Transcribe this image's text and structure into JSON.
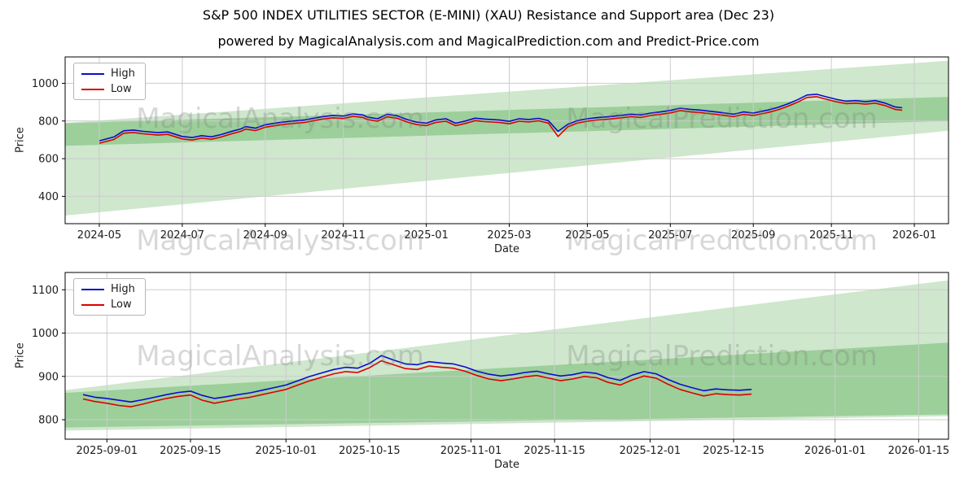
{
  "title": "S&P 500 INDEX UTILITIES SECTOR (E-MINI) (XAU) Resistance and Support area (Dec 23)",
  "subtitle": "powered by MagicalAnalysis.com and MagicalPrediction.com and Predict-Price.com",
  "watermark": {
    "analysis": "MagicalAnalysis.com",
    "prediction": "MagicalPrediction.com"
  },
  "colors": {
    "high_line": "#0b0bd0",
    "low_line": "#dd0000",
    "band_outer": "#cfe7cd",
    "band_inner": "#9ccf9a",
    "grid": "#cccccc",
    "spine": "#000000"
  },
  "chart_data": [
    {
      "type": "line",
      "xlabel": "Date",
      "ylabel": "Price",
      "xlim": [
        2024.26,
        2026.07
      ],
      "ylim": [
        255,
        1140
      ],
      "yticks": [
        400,
        600,
        800,
        1000
      ],
      "xticks": [
        {
          "pos": 2024.33,
          "label": "2024-05"
        },
        {
          "pos": 2024.5,
          "label": "2024-07"
        },
        {
          "pos": 2024.67,
          "label": "2024-09"
        },
        {
          "pos": 2024.83,
          "label": "2024-11"
        },
        {
          "pos": 2025.0,
          "label": "2025-01"
        },
        {
          "pos": 2025.17,
          "label": "2025-03"
        },
        {
          "pos": 2025.33,
          "label": "2025-05"
        },
        {
          "pos": 2025.5,
          "label": "2025-07"
        },
        {
          "pos": 2025.67,
          "label": "2025-09"
        },
        {
          "pos": 2025.83,
          "label": "2025-11"
        },
        {
          "pos": 2026.0,
          "label": "2026-01"
        }
      ],
      "x": [
        2024.33,
        2024.36,
        2024.38,
        2024.4,
        2024.42,
        2024.45,
        2024.47,
        2024.5,
        2024.52,
        2024.54,
        2024.56,
        2024.58,
        2024.6,
        2024.62,
        2024.63,
        2024.65,
        2024.67,
        2024.7,
        2024.72,
        2024.75,
        2024.77,
        2024.79,
        2024.81,
        2024.83,
        2024.85,
        2024.87,
        2024.88,
        2024.9,
        2024.92,
        2024.94,
        2024.96,
        2024.98,
        2025.0,
        2025.02,
        2025.04,
        2025.06,
        2025.08,
        2025.1,
        2025.12,
        2025.15,
        2025.17,
        2025.19,
        2025.21,
        2025.23,
        2025.25,
        2025.27,
        2025.29,
        2025.31,
        2025.33,
        2025.35,
        2025.37,
        2025.4,
        2025.42,
        2025.44,
        2025.46,
        2025.48,
        2025.5,
        2025.52,
        2025.54,
        2025.56,
        2025.58,
        2025.6,
        2025.63,
        2025.65,
        2025.67,
        2025.7,
        2025.72,
        2025.74,
        2025.76,
        2025.78,
        2025.8,
        2025.82,
        2025.84,
        2025.86,
        2025.88,
        2025.9,
        2025.92,
        2025.94,
        2025.96,
        2025.975
      ],
      "series": [
        {
          "name": "High",
          "color": "#0b0bd0",
          "values": [
            695,
            715,
            748,
            752,
            745,
            738,
            742,
            718,
            712,
            722,
            716,
            728,
            744,
            758,
            770,
            762,
            780,
            792,
            798,
            805,
            815,
            824,
            830,
            826,
            838,
            832,
            820,
            812,
            835,
            828,
            808,
            794,
            788,
            806,
            812,
            788,
            800,
            815,
            810,
            805,
            798,
            812,
            808,
            814,
            802,
            745,
            782,
            802,
            812,
            818,
            822,
            830,
            836,
            832,
            842,
            848,
            856,
            868,
            862,
            858,
            852,
            846,
            836,
            848,
            842,
            858,
            872,
            890,
            912,
            938,
            942,
            928,
            915,
            905,
            908,
            902,
            908,
            895,
            875,
            870
          ]
        },
        {
          "name": "Low",
          "color": "#dd0000",
          "values": [
            682,
            702,
            735,
            739,
            732,
            725,
            729,
            705,
            699,
            709,
            703,
            715,
            731,
            745,
            757,
            749,
            767,
            779,
            785,
            792,
            802,
            811,
            817,
            813,
            825,
            819,
            807,
            799,
            822,
            815,
            795,
            781,
            775,
            793,
            799,
            775,
            787,
            802,
            797,
            792,
            785,
            799,
            795,
            801,
            789,
            718,
            769,
            789,
            799,
            805,
            809,
            817,
            823,
            819,
            829,
            835,
            843,
            855,
            849,
            845,
            839,
            833,
            823,
            835,
            829,
            845,
            859,
            877,
            899,
            925,
            929,
            915,
            902,
            892,
            895,
            889,
            895,
            882,
            862,
            857
          ]
        }
      ],
      "bands": [
        {
          "name": "support-resistance-outer",
          "color": "#cfe7cd",
          "points": [
            [
              2024.26,
              790
            ],
            [
              2026.07,
              1120
            ],
            [
              2026.07,
              748
            ],
            [
              2024.26,
              298
            ]
          ]
        },
        {
          "name": "support-resistance-inner",
          "color": "#9ccf9a",
          "points": [
            [
              2024.26,
              788
            ],
            [
              2026.07,
              928
            ],
            [
              2026.07,
              800
            ],
            [
              2024.26,
              668
            ]
          ]
        }
      ]
    },
    {
      "type": "line",
      "xlabel": "Date",
      "ylabel": "Price",
      "xlim": [
        0,
        148
      ],
      "ylim": [
        755,
        1140
      ],
      "yticks": [
        800,
        900,
        1000,
        1100
      ],
      "xticks": [
        {
          "pos": 7,
          "label": "2025-09-01"
        },
        {
          "pos": 21,
          "label": "2025-09-15"
        },
        {
          "pos": 37,
          "label": "2025-10-01"
        },
        {
          "pos": 51,
          "label": "2025-10-15"
        },
        {
          "pos": 68,
          "label": "2025-11-01"
        },
        {
          "pos": 82,
          "label": "2025-11-15"
        },
        {
          "pos": 98,
          "label": "2025-12-01"
        },
        {
          "pos": 112,
          "label": "2025-12-15"
        },
        {
          "pos": 129,
          "label": "2026-01-01"
        },
        {
          "pos": 143,
          "label": "2026-01-15"
        }
      ],
      "x": [
        3,
        5,
        7,
        9,
        11,
        13,
        15,
        17,
        19,
        21,
        23,
        25,
        27,
        29,
        31,
        33,
        35,
        37,
        39,
        41,
        43,
        45,
        47,
        49,
        51,
        53,
        55,
        57,
        59,
        61,
        63,
        65,
        67,
        69,
        71,
        73,
        75,
        77,
        79,
        81,
        83,
        85,
        87,
        89,
        91,
        93,
        95,
        97,
        99,
        101,
        103,
        105,
        107,
        109,
        111,
        113,
        115
      ],
      "series": [
        {
          "name": "High",
          "color": "#0b0bd0",
          "values": [
            858,
            852,
            849,
            845,
            841,
            846,
            852,
            858,
            863,
            866,
            856,
            849,
            853,
            858,
            862,
            868,
            874,
            880,
            890,
            900,
            908,
            916,
            921,
            919,
            930,
            948,
            938,
            929,
            927,
            934,
            931,
            929,
            922,
            912,
            905,
            901,
            904,
            909,
            912,
            906,
            901,
            904,
            910,
            907,
            897,
            891,
            903,
            911,
            906,
            893,
            882,
            874,
            867,
            871,
            869,
            868,
            870
          ]
        },
        {
          "name": "Low",
          "color": "#dd0000",
          "values": [
            848,
            842,
            838,
            833,
            830,
            836,
            843,
            849,
            854,
            857,
            845,
            838,
            843,
            848,
            852,
            858,
            864,
            870,
            880,
            890,
            898,
            906,
            911,
            909,
            920,
            936,
            927,
            918,
            916,
            924,
            921,
            919,
            912,
            902,
            894,
            890,
            894,
            899,
            902,
            896,
            890,
            894,
            900,
            897,
            886,
            880,
            892,
            901,
            896,
            882,
            870,
            862,
            855,
            860,
            858,
            857,
            859
          ]
        }
      ],
      "bands": [
        {
          "name": "support-resistance-outer",
          "color": "#cfe7cd",
          "points": [
            [
              0,
              868
            ],
            [
              148,
              1122
            ],
            [
              148,
              808
            ],
            [
              0,
              775
            ]
          ]
        },
        {
          "name": "support-resistance-inner",
          "color": "#9ccf9a",
          "points": [
            [
              0,
              862
            ],
            [
              148,
              978
            ],
            [
              148,
              812
            ],
            [
              0,
              782
            ]
          ]
        }
      ]
    }
  ]
}
